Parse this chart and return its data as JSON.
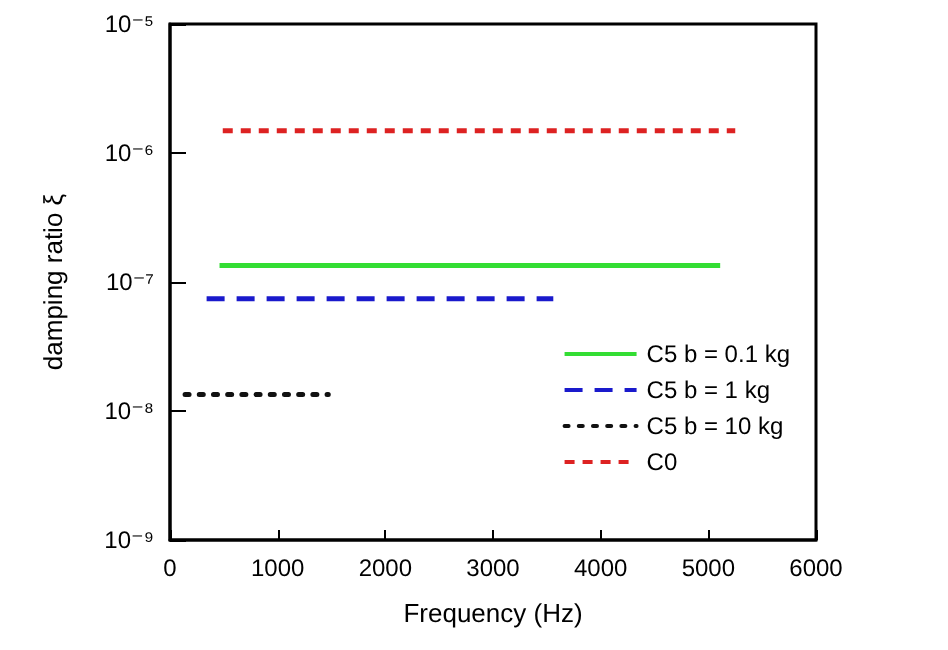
{
  "chart_data": {
    "type": "line",
    "xlabel": "Frequency (Hz)",
    "ylabel": "damping ratio ξ",
    "xlim": [
      0,
      6000
    ],
    "xticks": [
      0,
      1000,
      2000,
      3000,
      4000,
      5000,
      6000
    ],
    "ylim": [
      1e-09,
      1e-05
    ],
    "log": true,
    "yticks": [
      {
        "value": 1e-09,
        "label": "10⁻⁹"
      },
      {
        "value": 1e-08,
        "label": "10⁻⁸"
      },
      {
        "value": 1e-07,
        "label": "10⁻⁷"
      },
      {
        "value": 1e-06,
        "label": "10⁻⁶"
      },
      {
        "value": 1e-05,
        "label": "10⁻⁵"
      }
    ],
    "grid": false,
    "legend": "bottom right",
    "marker": "none",
    "series": [
      {
        "name": "C5 b = 0.1 kg",
        "color": "#33dd33",
        "line_style": "solid",
        "x": [
          460,
          5110
        ],
        "values": [
          1.34e-07,
          1.34e-07
        ]
      },
      {
        "name": "C5 b = 1 kg",
        "color": "#1a1acc",
        "line_style": "dashed",
        "x": [
          340,
          3560
        ],
        "values": [
          7.4e-08,
          7.4e-08
        ]
      },
      {
        "name": "C5 b = 10 kg",
        "color": "#111111",
        "line_style": "dotted",
        "x": [
          140,
          1470
        ],
        "values": [
          1.34e-08,
          1.34e-08
        ]
      },
      {
        "name": "C0",
        "color": "#dd2222",
        "line_style": "dashed",
        "x": [
          490,
          5250
        ],
        "values": [
          1.49e-06,
          1.49e-06
        ]
      }
    ]
  }
}
